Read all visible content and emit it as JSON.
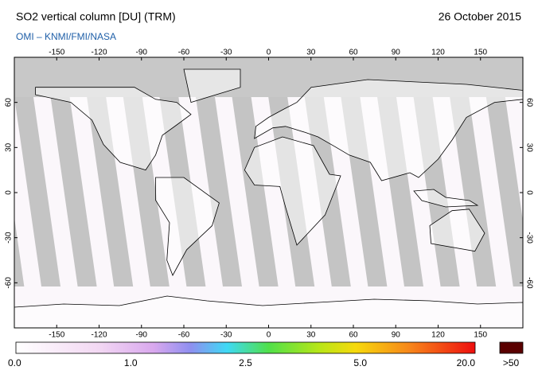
{
  "header": {
    "title": "SO2 vertical column [DU] (TRM)",
    "source": "OMI  –  KNMI/FMI/NASA",
    "date": "26 October 2015"
  },
  "map": {
    "lon_ticks": [
      -150,
      -120,
      -90,
      -60,
      -30,
      0,
      30,
      60,
      90,
      120,
      150
    ],
    "lat_ticks": [
      60,
      30,
      0,
      -30,
      -60
    ]
  },
  "colorbar": {
    "labels": [
      "0.0",
      "1.0",
      "2.5",
      "5.0",
      "20.0"
    ],
    "overflow_label": ">50"
  }
}
